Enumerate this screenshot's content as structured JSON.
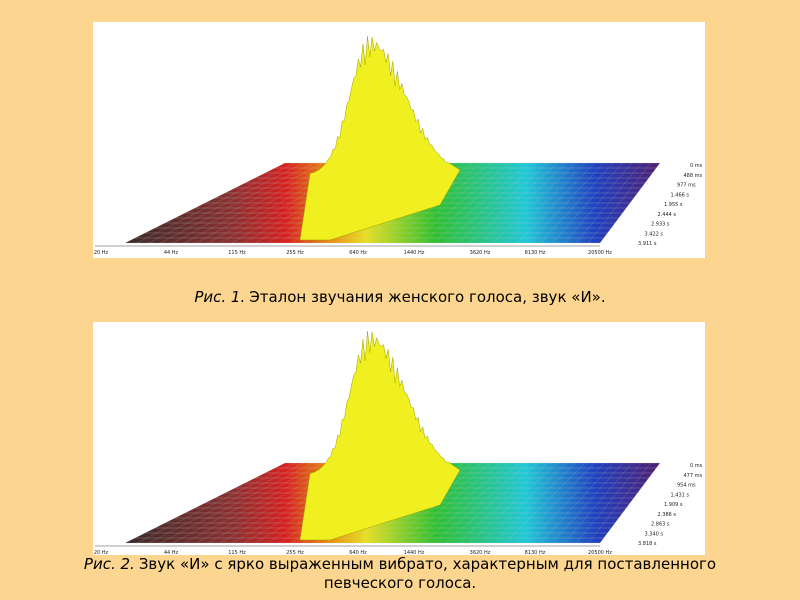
{
  "figures": [
    {
      "frequency_labels": [
        "20 Hz",
        "44 Hz",
        "115 Hz",
        "255 Hz",
        "640 Hz",
        "1440 Hz",
        "3620 Hz",
        "8130 Hz",
        "20500 Hz"
      ],
      "time_labels": [
        "0 ms",
        "488 ms",
        "977 ms",
        "1.466 s",
        "1.955 s",
        "2.444 s",
        "2.933 s",
        "3.422 s",
        "3.911 s"
      ],
      "caption": {
        "number": "Рис. 1.",
        "text": "Эталон звучания женского голоса, звук «И»."
      }
    },
    {
      "frequency_labels": [
        "20 Hz",
        "44 Hz",
        "115 Hz",
        "255 Hz",
        "640 Hz",
        "1440 Hz",
        "3620 Hz",
        "8130 Hz",
        "20500 Hz"
      ],
      "time_labels": [
        "0 ms",
        "477 ms",
        "954 ms",
        "1.431 s",
        "1.909 s",
        "2.386 s",
        "2.863 s",
        "3.340 s",
        "3.818 s"
      ],
      "caption": {
        "number": "Рис. 2.",
        "text": "Звук «И» с ярко выраженным вибрато, характерным для поставленного певческого голоса."
      }
    }
  ]
}
